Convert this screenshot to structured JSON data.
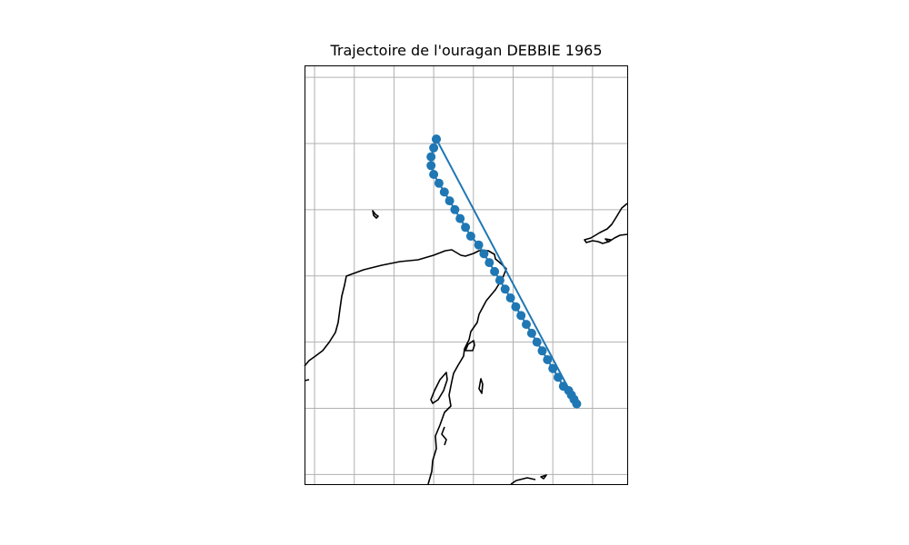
{
  "figure": {
    "title": "Trajectoire de l'ouragan DEBBIE 1965"
  },
  "style": {
    "track_color": "#1f77b4",
    "coast_color": "#000000",
    "grid_color": "#b0b0b0",
    "frame_color": "#000000"
  },
  "map": {
    "projection": "PlateCarree",
    "gridlines": true,
    "gridline_labels": false,
    "coastlines": true
  },
  "chart_data": {
    "type": "line",
    "marker": "circle",
    "series": [
      {
        "points": [
          [
            -86.9,
            26.1
          ],
          [
            -87.0,
            25.9
          ],
          [
            -87.1,
            25.7
          ],
          [
            -87.1,
            25.5
          ],
          [
            -87.0,
            25.3
          ],
          [
            -86.8,
            25.1
          ],
          [
            -86.6,
            24.9
          ],
          [
            -86.4,
            24.7
          ],
          [
            -86.2,
            24.5
          ],
          [
            -86.0,
            24.3
          ],
          [
            -85.8,
            24.1
          ],
          [
            -85.6,
            23.9
          ],
          [
            -85.3,
            23.7
          ],
          [
            -85.1,
            23.5
          ],
          [
            -84.9,
            23.3
          ],
          [
            -84.7,
            23.1
          ],
          [
            -84.5,
            22.9
          ],
          [
            -84.3,
            22.7
          ],
          [
            -84.1,
            22.5
          ],
          [
            -83.9,
            22.3
          ],
          [
            -83.7,
            22.1
          ],
          [
            -83.5,
            21.9
          ],
          [
            -83.3,
            21.7
          ],
          [
            -83.1,
            21.5
          ],
          [
            -82.9,
            21.3
          ],
          [
            -82.7,
            21.1
          ],
          [
            -82.5,
            20.9
          ],
          [
            -82.3,
            20.7
          ],
          [
            -82.1,
            20.5
          ],
          [
            -81.9,
            20.4
          ],
          [
            -81.8,
            20.3
          ],
          [
            -81.7,
            20.2
          ],
          [
            -81.6,
            20.1
          ],
          [
            -86.9,
            26.1
          ]
        ]
      }
    ]
  }
}
